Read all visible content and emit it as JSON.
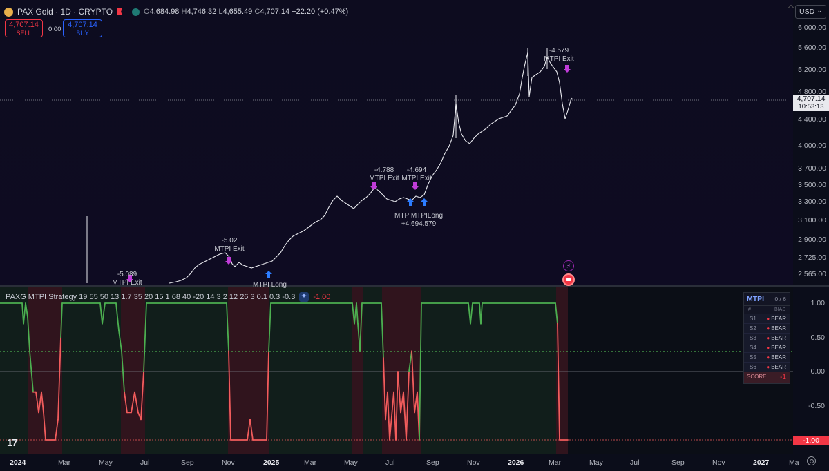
{
  "header": {
    "symbol": "PAX Gold · 1D · CRYPTO",
    "ohlc": {
      "o_label": "O",
      "o": "4,684.98",
      "h_label": "H",
      "h": "4,746.32",
      "l_label": "L",
      "l": "4,655.49",
      "c_label": "C",
      "c": "4,707.14",
      "change": "+22.20 (+0.47%)"
    },
    "sell": {
      "price": "4,707.14",
      "label": "SELL"
    },
    "buy": {
      "price": "4,707.14",
      "label": "BUY"
    },
    "spread": "0.00",
    "currency": "USD"
  },
  "price_axis": {
    "ticks": [
      "6,000.00",
      "5,600.00",
      "5,200.00",
      "4,800.00",
      "4,400.00",
      "4,000.00",
      "3,700.00",
      "3,500.00",
      "3,300.00",
      "3,100.00",
      "2,900.00",
      "2,725.00",
      "2,565.00"
    ],
    "current_price": "4,707.14",
    "countdown": "10:53:13"
  },
  "annotations": {
    "exits": [
      {
        "value": "-5.089",
        "label": "MTPI Exit"
      },
      {
        "value": "-5.02",
        "label": "MTPI Exit"
      },
      {
        "value": "-4.788",
        "label": "MTPI Exit"
      },
      {
        "value": "-4.694",
        "label": "MTPI Exit"
      },
      {
        "value": "-4.579",
        "label": "MTPI Exit"
      }
    ],
    "longs": [
      {
        "label": "MTPI Long"
      },
      {
        "label": "MTPIMTPILong",
        "values": "+4.694.579"
      }
    ]
  },
  "indicator": {
    "title": "PAXG MTPI Strategy 19 55 50 13 1.7 35 20 15 1 68 40 -20 14 3 2 12 26 3 0.1 0.3 -0.3",
    "last_value": "-1.00",
    "axis_ticks": [
      "1.00",
      "0.50",
      "0.00",
      "-0.50"
    ],
    "last_tag": "-1.00"
  },
  "mtpi_table": {
    "title": "MTPI",
    "count": "0 / 6",
    "col_hash": "#",
    "col_bias": "BIAS",
    "rows": [
      {
        "s": "S1",
        "bias": "BEAR"
      },
      {
        "s": "S2",
        "bias": "BEAR"
      },
      {
        "s": "S3",
        "bias": "BEAR"
      },
      {
        "s": "S4",
        "bias": "BEAR"
      },
      {
        "s": "S5",
        "bias": "BEAR"
      },
      {
        "s": "S6",
        "bias": "BEAR"
      }
    ],
    "score_label": "SCORE",
    "score_value": "-1"
  },
  "time_axis": {
    "ticks": [
      "2024",
      "Mar",
      "May",
      "Jul",
      "Sep",
      "Nov",
      "2025",
      "Mar",
      "May",
      "Jul",
      "Sep",
      "Nov",
      "2026",
      "Mar",
      "May",
      "Jul",
      "Sep",
      "Nov",
      "2027",
      "Ma"
    ]
  },
  "colors": {
    "bull": "#4caf50",
    "bear": "#f25c5c",
    "exit_marker": "#c03cd8",
    "long_marker": "#2d7dff",
    "bg": "#0b0d1a"
  },
  "icons": [
    "tradingview-logo-icon",
    "gear-icon",
    "lightning-icon",
    "flag-icon",
    "eye-icon",
    "chevron-down-icon"
  ]
}
